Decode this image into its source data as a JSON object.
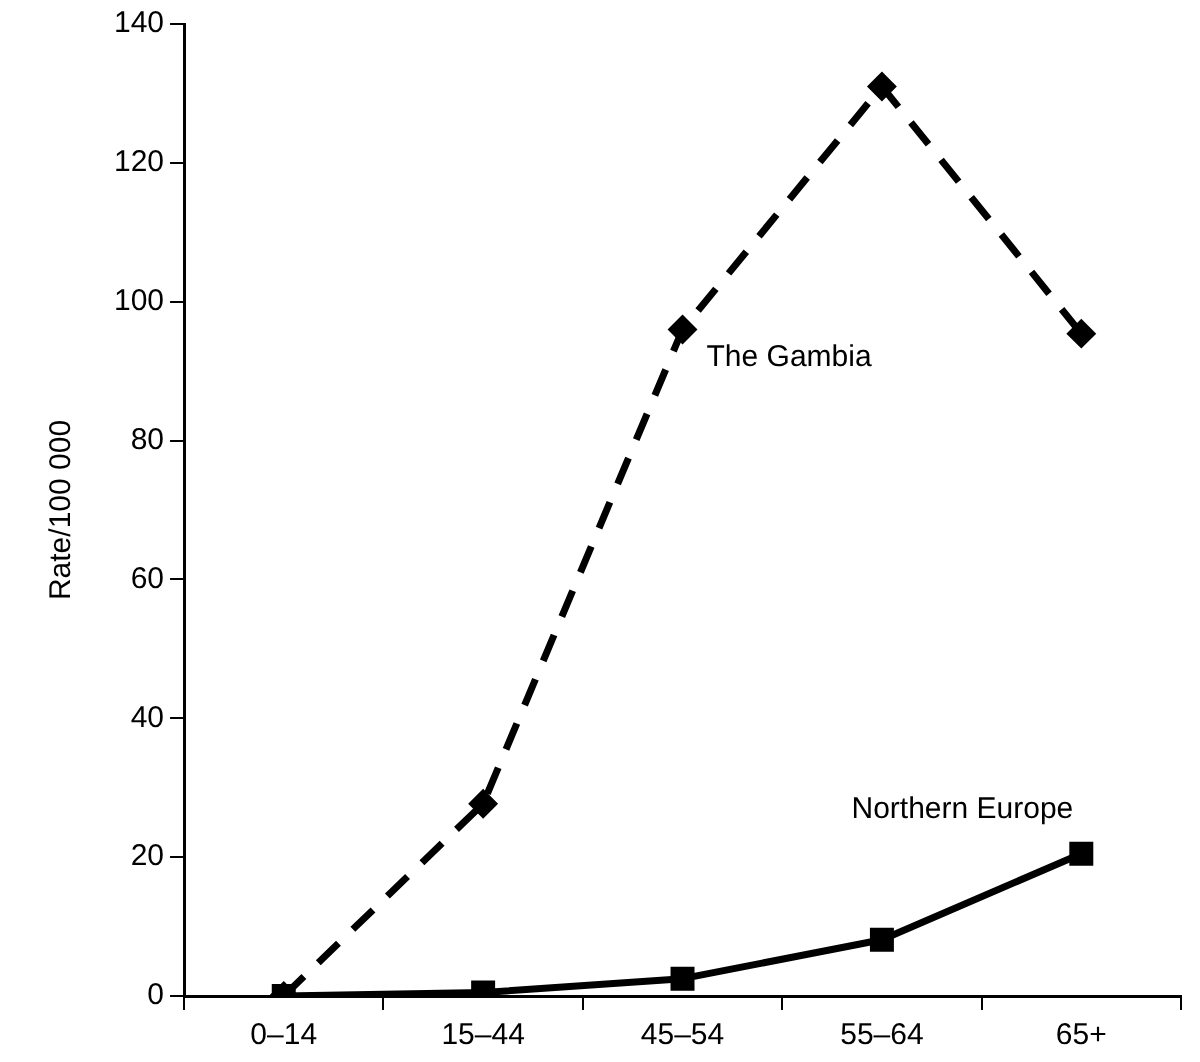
{
  "chart_data": {
    "type": "line",
    "ylabel": "Rate/100 000",
    "categories": [
      "0–14",
      "15–44",
      "45–54",
      "55–64",
      "65+"
    ],
    "series": [
      {
        "name": "The Gambia",
        "color": "#000000",
        "values": [
          0,
          27.7,
          96,
          131,
          95.4
        ],
        "marker": "diamond",
        "line_style": "dashed"
      },
      {
        "name": "Northern Europe",
        "color": "#000000",
        "values": [
          0,
          0.5,
          2.5,
          8.1,
          20.5
        ],
        "marker": "square",
        "line_style": "solid"
      }
    ],
    "ylim": [
      0,
      140
    ],
    "yticks": [
      0,
      20,
      40,
      60,
      80,
      100,
      120,
      140
    ],
    "grid": false,
    "legend": false
  }
}
